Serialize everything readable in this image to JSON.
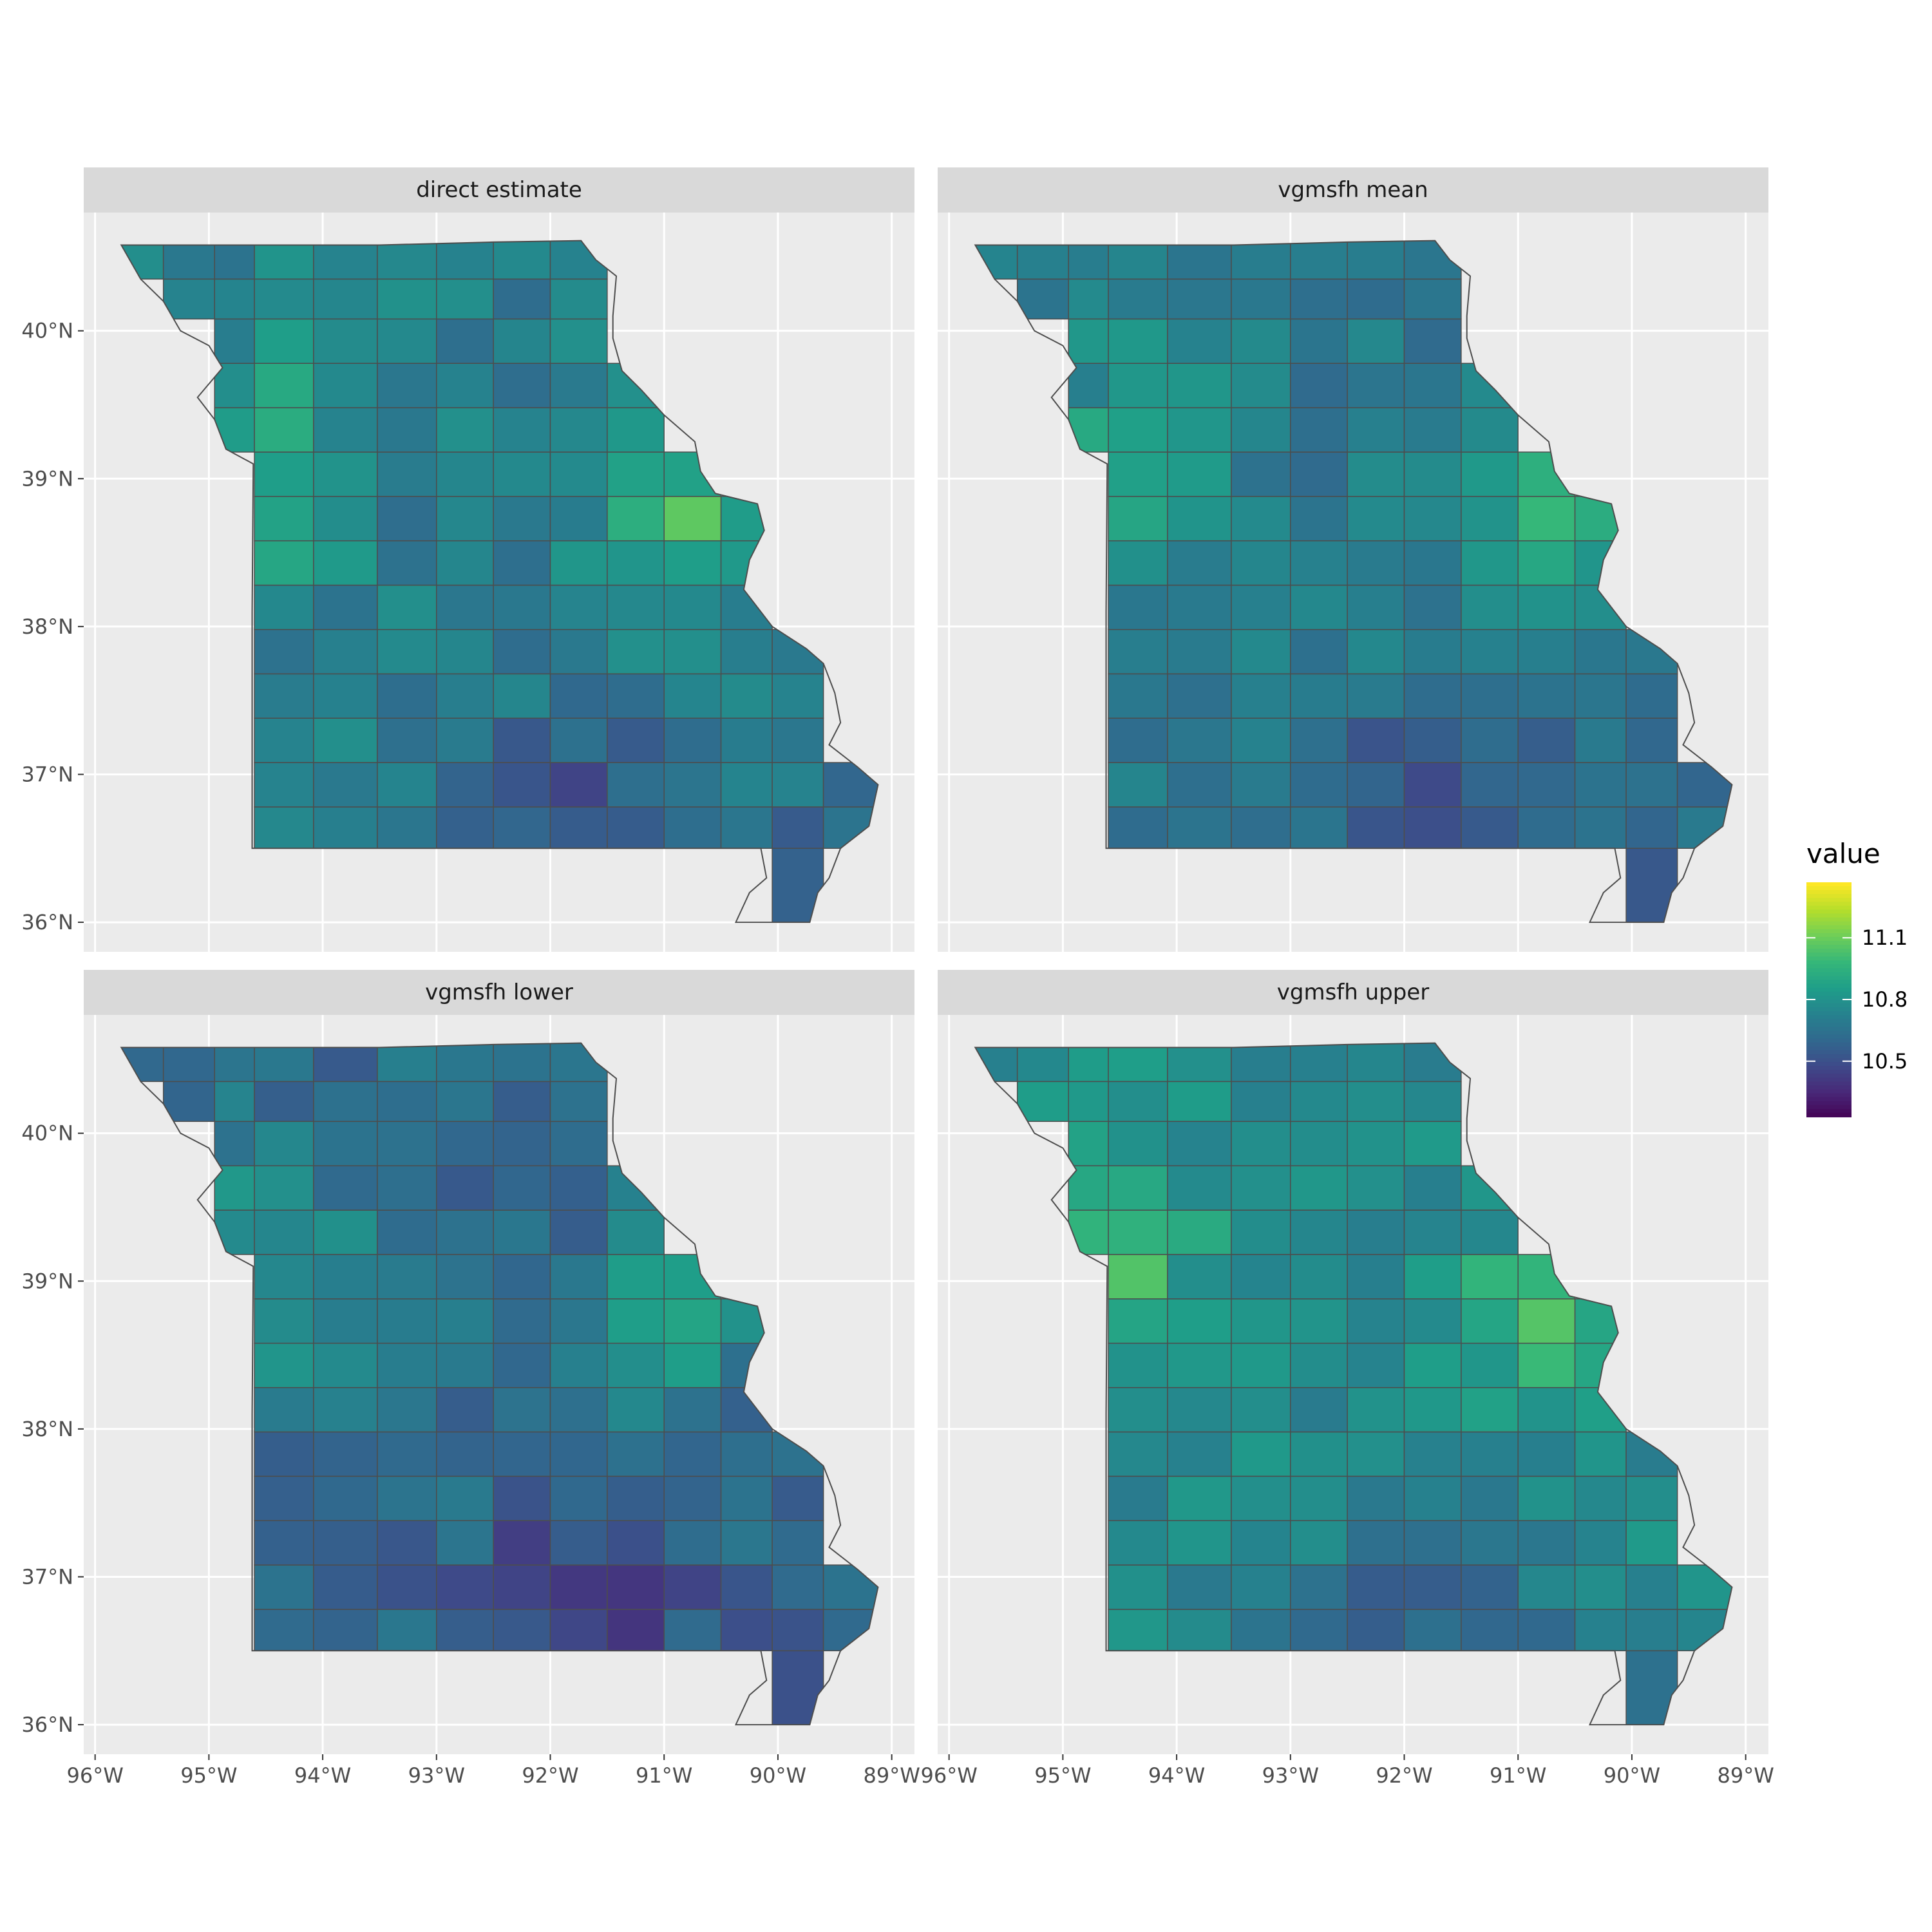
{
  "chart_data": {
    "type": "choropleth",
    "region": "Missouri counties",
    "facets": [
      {
        "label": "direct estimate",
        "seed": 1,
        "bias": 0.0,
        "spread": 1.0
      },
      {
        "label": "vgmsfh mean",
        "seed": 2,
        "bias": -0.02,
        "spread": 0.9
      },
      {
        "label": "vgmsfh lower",
        "seed": 3,
        "bias": -0.08,
        "spread": 1.1
      },
      {
        "label": "vgmsfh upper",
        "seed": 4,
        "bias": 0.06,
        "spread": 0.9
      }
    ],
    "x_axis": {
      "ticks": [
        "96°W",
        "95°W",
        "94°W",
        "93°W",
        "92°W",
        "91°W",
        "90°W",
        "89°W"
      ],
      "values": [
        -96,
        -95,
        -94,
        -93,
        -92,
        -91,
        -90,
        -89
      ],
      "range": [
        -96.1,
        -88.8
      ]
    },
    "y_axis": {
      "ticks": [
        "36°N",
        "37°N",
        "38°N",
        "39°N",
        "40°N"
      ],
      "values": [
        36,
        37,
        38,
        39,
        40
      ],
      "range": [
        35.8,
        40.8
      ]
    },
    "legend": {
      "title": "value",
      "ticks": [
        "10.5",
        "10.8",
        "11.1"
      ],
      "tick_values": [
        10.5,
        10.8,
        11.1
      ],
      "range": [
        10.23,
        11.37
      ],
      "position": "right"
    },
    "colorscale": "viridis",
    "grid": true
  }
}
